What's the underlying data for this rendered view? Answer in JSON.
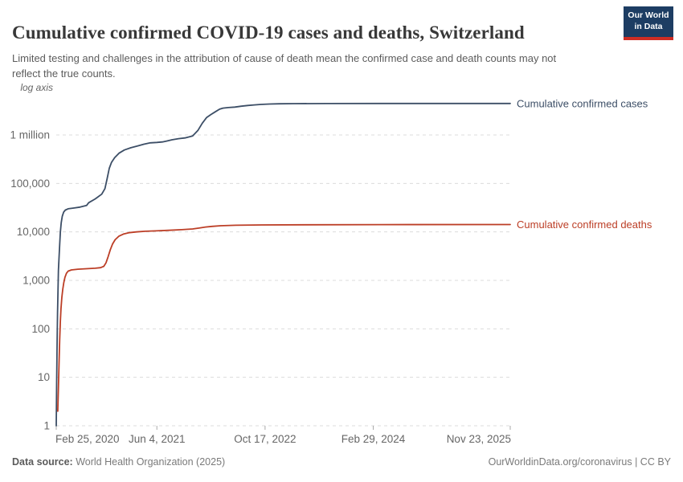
{
  "header": {
    "title": "Cumulative confirmed COVID-19 cases and deaths, Switzerland",
    "subtitle": "Limited testing and challenges in the attribution of cause of death mean the confirmed case and death counts may not reflect the true counts.",
    "logo": {
      "line1": "Our World",
      "line2": "in Data",
      "bg": "#1d3d63",
      "accent": "#cf2d24"
    }
  },
  "chart_data": {
    "type": "line",
    "yscale": "log",
    "axis_note": "log axis",
    "title": "Cumulative confirmed COVID-19 cases and deaths, Switzerland",
    "xlabel": "",
    "ylabel": "",
    "ylim": [
      1,
      5000000
    ],
    "grid": true,
    "legend_position": "right-of-line-end",
    "y_ticks": [
      {
        "label": "1",
        "value": 1
      },
      {
        "label": "10",
        "value": 10
      },
      {
        "label": "100",
        "value": 100
      },
      {
        "label": "1,000",
        "value": 1000
      },
      {
        "label": "10,000",
        "value": 10000
      },
      {
        "label": "100,000",
        "value": 100000
      },
      {
        "label": "1 million",
        "value": 1000000
      }
    ],
    "x_total_days": 2098,
    "x_ticks": [
      {
        "label": "Feb 25, 2020",
        "day": 0
      },
      {
        "label": "Jun 4, 2021",
        "day": 465
      },
      {
        "label": "Oct 17, 2022",
        "day": 965
      },
      {
        "label": "Feb 29, 2024",
        "day": 1465
      },
      {
        "label": "Nov 23, 2025",
        "day": 2098
      }
    ],
    "series": [
      {
        "name": "Cumulative confirmed cases",
        "color": "#3c4e66",
        "points": [
          [
            0,
            1
          ],
          [
            2,
            8
          ],
          [
            4,
            55
          ],
          [
            6,
            210
          ],
          [
            8,
            640
          ],
          [
            10,
            1600
          ],
          [
            13,
            3000
          ],
          [
            16,
            5500
          ],
          [
            19,
            9800
          ],
          [
            23,
            15500
          ],
          [
            28,
            21000
          ],
          [
            34,
            25500
          ],
          [
            42,
            28200
          ],
          [
            55,
            30000
          ],
          [
            80,
            31000
          ],
          [
            110,
            32500
          ],
          [
            140,
            35000
          ],
          [
            150,
            40000
          ],
          [
            180,
            48000
          ],
          [
            210,
            60000
          ],
          [
            225,
            78000
          ],
          [
            235,
            125000
          ],
          [
            245,
            205000
          ],
          [
            255,
            270000
          ],
          [
            270,
            340000
          ],
          [
            290,
            420000
          ],
          [
            315,
            490000
          ],
          [
            345,
            545000
          ],
          [
            375,
            590000
          ],
          [
            405,
            645000
          ],
          [
            435,
            688000
          ],
          [
            465,
            702000
          ],
          [
            490,
            718000
          ],
          [
            510,
            748000
          ],
          [
            535,
            795000
          ],
          [
            565,
            838000
          ],
          [
            595,
            868000
          ],
          [
            630,
            950000
          ],
          [
            655,
            1250000
          ],
          [
            675,
            1750000
          ],
          [
            695,
            2300000
          ],
          [
            715,
            2650000
          ],
          [
            735,
            3000000
          ],
          [
            755,
            3400000
          ],
          [
            770,
            3580000
          ],
          [
            795,
            3680000
          ],
          [
            825,
            3760000
          ],
          [
            855,
            3920000
          ],
          [
            885,
            4060000
          ],
          [
            915,
            4160000
          ],
          [
            945,
            4260000
          ],
          [
            985,
            4350000
          ],
          [
            1030,
            4400000
          ],
          [
            1100,
            4430000
          ],
          [
            1250,
            4450000
          ],
          [
            1500,
            4460000
          ],
          [
            2098,
            4470000
          ]
        ]
      },
      {
        "name": "Cumulative confirmed deaths",
        "color": "#bc3e26",
        "points": [
          [
            7,
            2
          ],
          [
            10,
            6
          ],
          [
            13,
            20
          ],
          [
            16,
            60
          ],
          [
            19,
            140
          ],
          [
            22,
            260
          ],
          [
            26,
            450
          ],
          [
            30,
            650
          ],
          [
            35,
            900
          ],
          [
            40,
            1150
          ],
          [
            47,
            1400
          ],
          [
            55,
            1550
          ],
          [
            70,
            1640
          ],
          [
            100,
            1700
          ],
          [
            140,
            1740
          ],
          [
            180,
            1780
          ],
          [
            205,
            1830
          ],
          [
            220,
            1950
          ],
          [
            230,
            2300
          ],
          [
            240,
            3100
          ],
          [
            250,
            4300
          ],
          [
            260,
            5600
          ],
          [
            272,
            6900
          ],
          [
            290,
            8200
          ],
          [
            310,
            9000
          ],
          [
            335,
            9600
          ],
          [
            370,
            10000
          ],
          [
            410,
            10300
          ],
          [
            460,
            10500
          ],
          [
            520,
            10800
          ],
          [
            580,
            11100
          ],
          [
            630,
            11500
          ],
          [
            660,
            12000
          ],
          [
            690,
            12600
          ],
          [
            720,
            13000
          ],
          [
            760,
            13400
          ],
          [
            830,
            13700
          ],
          [
            950,
            13900
          ],
          [
            1150,
            14050
          ],
          [
            1500,
            14150
          ],
          [
            2098,
            14200
          ]
        ]
      }
    ],
    "colors": {
      "grid": "#dcdcdc",
      "tick_text": "#666666",
      "tick_mark": "#aaaaaa",
      "axis_note": "#666666"
    }
  },
  "footer": {
    "datasource_label": "Data source:",
    "datasource_value": " World Health Organization (2025)",
    "credit": "OurWorldinData.org/coronavirus | CC BY"
  }
}
